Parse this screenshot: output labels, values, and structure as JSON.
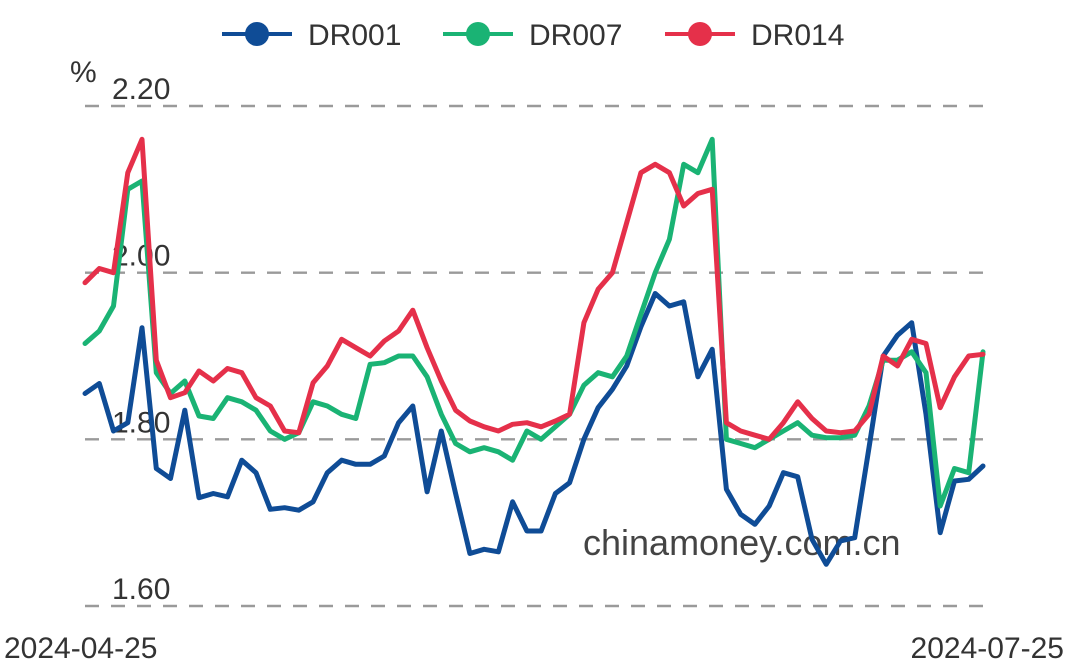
{
  "chart_data": {
    "type": "line",
    "unit": "%",
    "x": {
      "start": "2024-04-25",
      "end": "2024-07-25"
    },
    "y_ticks": [
      "1.60",
      "1.80",
      "2.00",
      "2.20"
    ],
    "ylim": [
      1.6,
      2.2
    ],
    "grid": true,
    "legend_position": "top",
    "watermark": "chinamoney.com.cn",
    "series": [
      {
        "name": "DR001",
        "color": "#0f4c96",
        "values": [
          1.855,
          1.867,
          1.81,
          1.82,
          1.934,
          1.765,
          1.753,
          1.835,
          1.73,
          1.735,
          1.731,
          1.775,
          1.76,
          1.716,
          1.718,
          1.715,
          1.725,
          1.76,
          1.775,
          1.77,
          1.77,
          1.78,
          1.82,
          1.84,
          1.737,
          1.81,
          1.735,
          1.663,
          1.668,
          1.665,
          1.725,
          1.69,
          1.69,
          1.735,
          1.748,
          1.8,
          1.838,
          1.86,
          1.888,
          1.935,
          1.975,
          1.96,
          1.965,
          1.875,
          1.908,
          1.74,
          1.71,
          1.698,
          1.72,
          1.76,
          1.755,
          1.68,
          1.65,
          1.678,
          1.682,
          1.79,
          1.9,
          1.925,
          1.94,
          1.83,
          1.688,
          1.75,
          1.752,
          1.768
        ]
      },
      {
        "name": "DR007",
        "color": "#1ab374",
        "values": [
          1.915,
          1.93,
          1.96,
          2.1,
          2.11,
          1.88,
          1.855,
          1.87,
          1.828,
          1.825,
          1.85,
          1.845,
          1.835,
          1.81,
          1.8,
          1.808,
          1.845,
          1.84,
          1.83,
          1.825,
          1.89,
          1.892,
          1.9,
          1.9,
          1.875,
          1.83,
          1.795,
          1.785,
          1.79,
          1.785,
          1.775,
          1.81,
          1.8,
          1.815,
          1.83,
          1.865,
          1.88,
          1.875,
          1.9,
          1.95,
          2.0,
          2.04,
          2.13,
          2.12,
          2.16,
          1.8,
          1.795,
          1.79,
          1.8,
          1.81,
          1.82,
          1.805,
          1.802,
          1.802,
          1.805,
          1.84,
          1.895,
          1.895,
          1.905,
          1.88,
          1.72,
          1.765,
          1.76,
          1.905
        ]
      },
      {
        "name": "DR014",
        "color": "#e5304a",
        "values": [
          1.988,
          2.005,
          2.0,
          2.12,
          2.16,
          1.895,
          1.85,
          1.856,
          1.882,
          1.87,
          1.885,
          1.88,
          1.85,
          1.84,
          1.81,
          1.808,
          1.868,
          1.888,
          1.92,
          1.91,
          1.9,
          1.918,
          1.93,
          1.955,
          1.91,
          1.87,
          1.835,
          1.822,
          1.815,
          1.81,
          1.818,
          1.82,
          1.815,
          1.822,
          1.83,
          1.94,
          1.98,
          2.0,
          2.06,
          2.12,
          2.13,
          2.12,
          2.08,
          2.095,
          2.1,
          1.82,
          1.81,
          1.805,
          1.8,
          1.82,
          1.845,
          1.825,
          1.81,
          1.808,
          1.81,
          1.83,
          1.9,
          1.888,
          1.92,
          1.915,
          1.838,
          1.875,
          1.9,
          1.902
        ]
      }
    ]
  }
}
